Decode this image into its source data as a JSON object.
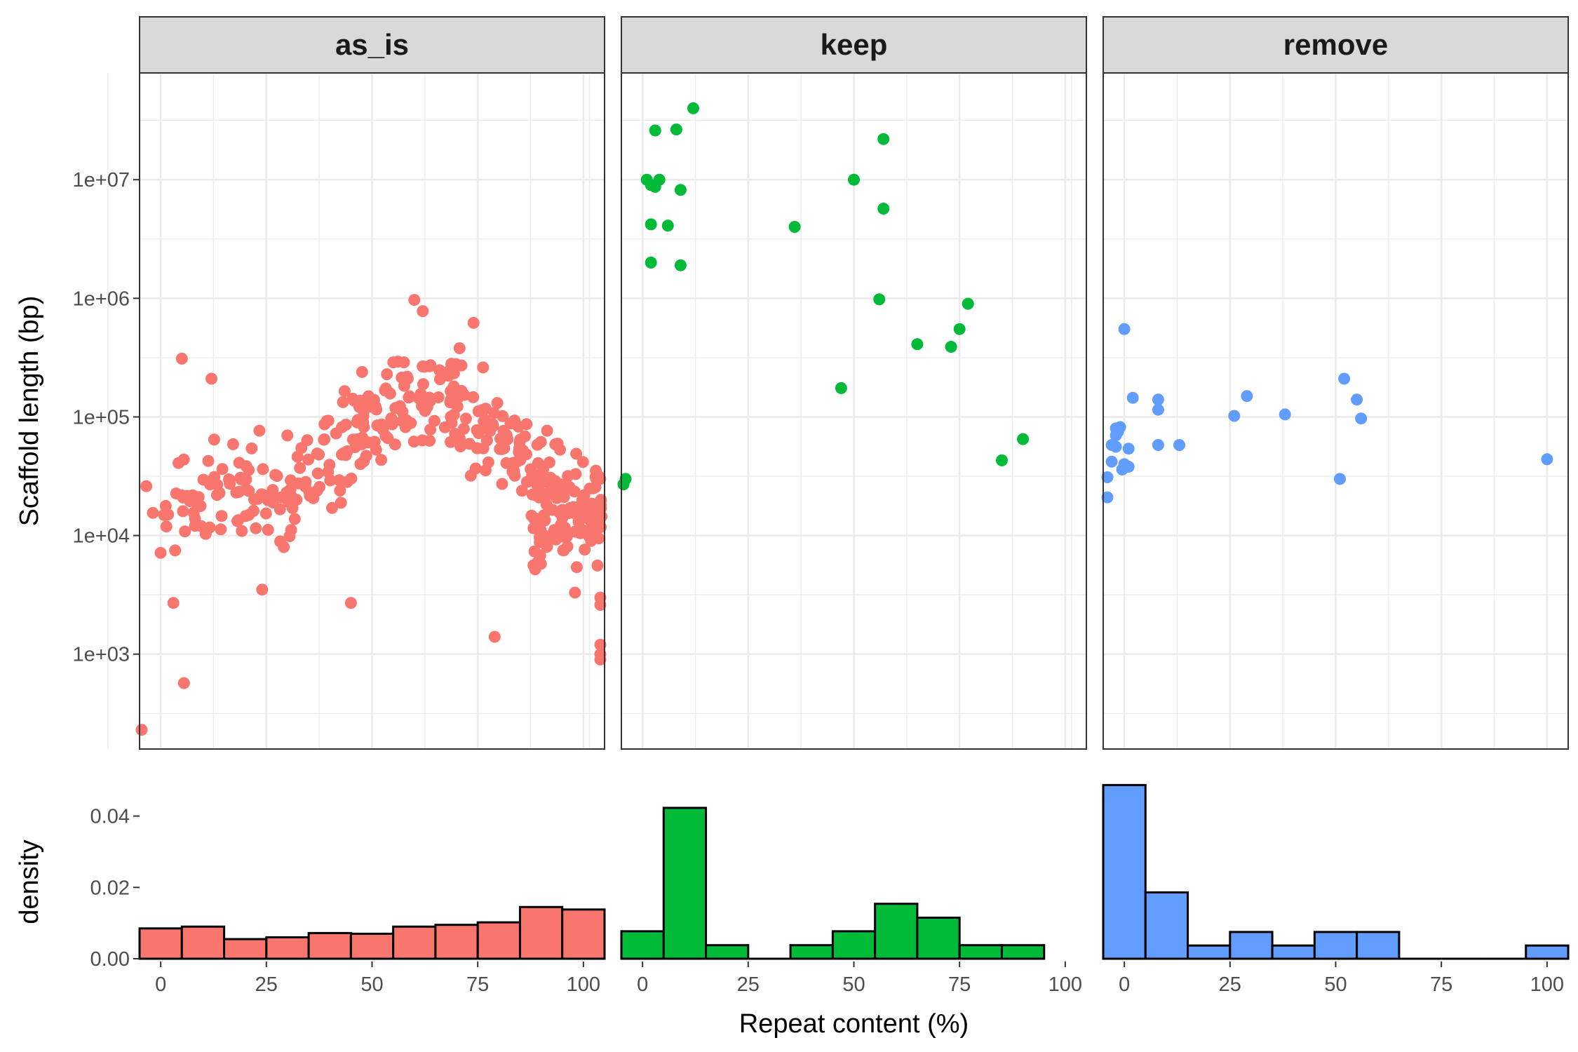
{
  "chart_data": {
    "type": "scatter",
    "x_label": "Repeat content (%)",
    "y_label": "Scaffold length (bp)",
    "density_label": "density",
    "y_scale": "log10",
    "y_ticks": [
      "1e+03",
      "1e+04",
      "1e+05",
      "1e+06",
      "1e+07"
    ],
    "density_ticks": [
      "0.00",
      "0.02",
      "0.04"
    ],
    "x_ticks": [
      "0",
      "25",
      "50",
      "75",
      "100"
    ],
    "xlim": [
      -5,
      105
    ],
    "ylim_log10": [
      2.2,
      7.9
    ],
    "density_lim": [
      0,
      0.047
    ],
    "grid": "on",
    "facets": [
      {
        "name": "as_is",
        "color": "#F8766D",
        "points_generated": true,
        "approx_count": 420,
        "histogram": {
          "bins": [
            [
              -5,
              5
            ],
            [
              5,
              15
            ],
            [
              15,
              25
            ],
            [
              25,
              35
            ],
            [
              35,
              45
            ],
            [
              45,
              55
            ],
            [
              55,
              65
            ],
            [
              65,
              75
            ],
            [
              75,
              85
            ],
            [
              85,
              95
            ],
            [
              95,
              105
            ]
          ],
          "density": [
            0.0085,
            0.009,
            0.0055,
            0.006,
            0.0072,
            0.007,
            0.009,
            0.0095,
            0.0102,
            0.0145,
            0.0138
          ]
        }
      },
      {
        "name": "keep",
        "color": "#00BA38",
        "points": [
          [
            12,
            40000000
          ],
          [
            3,
            26000000
          ],
          [
            8,
            26500000
          ],
          [
            57,
            22000000
          ],
          [
            1,
            10000000
          ],
          [
            4,
            10000000
          ],
          [
            2,
            9000000
          ],
          [
            3,
            8700000
          ],
          [
            50,
            10000000
          ],
          [
            9,
            8200000
          ],
          [
            57,
            5700000
          ],
          [
            36,
            4000000
          ],
          [
            2,
            4200000
          ],
          [
            6,
            4100000
          ],
          [
            2,
            2000000
          ],
          [
            9,
            1900000
          ],
          [
            56,
            980000
          ],
          [
            77,
            900000
          ],
          [
            75,
            550000
          ],
          [
            65,
            410000
          ],
          [
            73,
            390000
          ],
          [
            47,
            175000
          ],
          [
            90,
            65000
          ],
          [
            85,
            43000
          ],
          [
            -4,
            30000
          ],
          [
            -4.5,
            27000
          ]
        ],
        "histogram": {
          "bins": [
            [
              -5,
              5
            ],
            [
              5,
              15
            ],
            [
              15,
              25
            ],
            [
              25,
              35
            ],
            [
              35,
              45
            ],
            [
              45,
              55
            ],
            [
              55,
              65
            ],
            [
              65,
              75
            ],
            [
              75,
              85
            ],
            [
              85,
              95
            ]
          ],
          "density": [
            0.0077,
            0.0423,
            0.0038,
            0,
            0.0038,
            0.0077,
            0.0154,
            0.0115,
            0.0038,
            0.0038
          ]
        }
      },
      {
        "name": "remove",
        "color": "#619CFF",
        "points": [
          [
            0,
            550000
          ],
          [
            52,
            210000
          ],
          [
            29,
            150000
          ],
          [
            55,
            140000
          ],
          [
            2,
            145000
          ],
          [
            8,
            140000
          ],
          [
            8,
            115000
          ],
          [
            26,
            102000
          ],
          [
            38,
            105000
          ],
          [
            56,
            97000
          ],
          [
            -2,
            80000
          ],
          [
            -1,
            82000
          ],
          [
            -1.5,
            75000
          ],
          [
            -2,
            70000
          ],
          [
            -3,
            58000
          ],
          [
            -2,
            56000
          ],
          [
            1,
            54000
          ],
          [
            8,
            58000
          ],
          [
            13,
            58000
          ],
          [
            -3,
            42000
          ],
          [
            0,
            40000
          ],
          [
            -0.5,
            36000
          ],
          [
            1,
            38000
          ],
          [
            -4,
            31000
          ],
          [
            51,
            30000
          ],
          [
            100,
            44000
          ],
          [
            -4,
            21000
          ]
        ],
        "histogram": {
          "bins": [
            [
              -5,
              5
            ],
            [
              5,
              15
            ],
            [
              15,
              25
            ],
            [
              25,
              35
            ],
            [
              35,
              45
            ],
            [
              45,
              55
            ],
            [
              55,
              65
            ],
            [
              65,
              75
            ],
            [
              75,
              85
            ],
            [
              85,
              95
            ],
            [
              95,
              105
            ]
          ],
          "density": [
            0.0487,
            0.0186,
            0.0037,
            0.0075,
            0.0037,
            0.0075,
            0.0075,
            0,
            0,
            0,
            0.0037
          ]
        }
      }
    ]
  }
}
